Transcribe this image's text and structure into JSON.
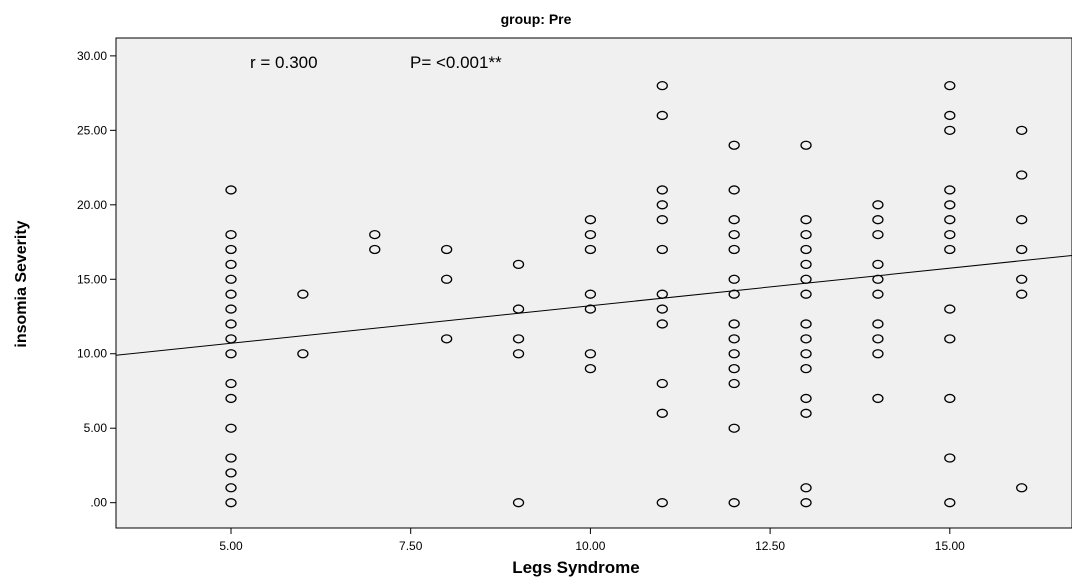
{
  "chart_data": {
    "type": "scatter",
    "title": "group: Pre",
    "xlabel": "Legs Syndrome",
    "ylabel": "insomia Severity",
    "xlim": [
      3.4,
      16.7
    ],
    "ylim": [
      -1.7,
      31.2
    ],
    "x_ticks": [
      "5.00",
      "7.50",
      "10.00",
      "12.50",
      "15.00"
    ],
    "y_ticks": [
      ".00",
      "5.00",
      "10.00",
      "15.00",
      "20.00",
      "25.00",
      "30.00"
    ],
    "annotations": {
      "r_text": "r = 0.300",
      "p_text": "P= <0.001**"
    },
    "fit_line": {
      "x": [
        3.4,
        16.7
      ],
      "y": [
        9.9,
        16.6
      ]
    },
    "grid": false,
    "background": "#f0f0f0",
    "marker_color": "#000000",
    "points": [
      {
        "x": 5,
        "y": 21
      },
      {
        "x": 5,
        "y": 18
      },
      {
        "x": 5,
        "y": 17
      },
      {
        "x": 5,
        "y": 16
      },
      {
        "x": 5,
        "y": 15
      },
      {
        "x": 5,
        "y": 14
      },
      {
        "x": 5,
        "y": 13
      },
      {
        "x": 5,
        "y": 12
      },
      {
        "x": 5,
        "y": 11
      },
      {
        "x": 5,
        "y": 10
      },
      {
        "x": 5,
        "y": 8
      },
      {
        "x": 5,
        "y": 7
      },
      {
        "x": 5,
        "y": 5
      },
      {
        "x": 5,
        "y": 3
      },
      {
        "x": 5,
        "y": 2
      },
      {
        "x": 5,
        "y": 1
      },
      {
        "x": 5,
        "y": 0
      },
      {
        "x": 6,
        "y": 14
      },
      {
        "x": 6,
        "y": 10
      },
      {
        "x": 7,
        "y": 18
      },
      {
        "x": 7,
        "y": 17
      },
      {
        "x": 8,
        "y": 17
      },
      {
        "x": 8,
        "y": 15
      },
      {
        "x": 8,
        "y": 11
      },
      {
        "x": 9,
        "y": 16
      },
      {
        "x": 9,
        "y": 13
      },
      {
        "x": 9,
        "y": 11
      },
      {
        "x": 9,
        "y": 10
      },
      {
        "x": 9,
        "y": 0
      },
      {
        "x": 10,
        "y": 19
      },
      {
        "x": 10,
        "y": 18
      },
      {
        "x": 10,
        "y": 17
      },
      {
        "x": 10,
        "y": 14
      },
      {
        "x": 10,
        "y": 13
      },
      {
        "x": 10,
        "y": 10
      },
      {
        "x": 10,
        "y": 9
      },
      {
        "x": 11,
        "y": 28
      },
      {
        "x": 11,
        "y": 26
      },
      {
        "x": 11,
        "y": 21
      },
      {
        "x": 11,
        "y": 20
      },
      {
        "x": 11,
        "y": 19
      },
      {
        "x": 11,
        "y": 17
      },
      {
        "x": 11,
        "y": 14
      },
      {
        "x": 11,
        "y": 13
      },
      {
        "x": 11,
        "y": 12
      },
      {
        "x": 11,
        "y": 8
      },
      {
        "x": 11,
        "y": 6
      },
      {
        "x": 11,
        "y": 0
      },
      {
        "x": 12,
        "y": 24
      },
      {
        "x": 12,
        "y": 21
      },
      {
        "x": 12,
        "y": 19
      },
      {
        "x": 12,
        "y": 18
      },
      {
        "x": 12,
        "y": 17
      },
      {
        "x": 12,
        "y": 15
      },
      {
        "x": 12,
        "y": 14
      },
      {
        "x": 12,
        "y": 12
      },
      {
        "x": 12,
        "y": 11
      },
      {
        "x": 12,
        "y": 10
      },
      {
        "x": 12,
        "y": 9
      },
      {
        "x": 12,
        "y": 8
      },
      {
        "x": 12,
        "y": 5
      },
      {
        "x": 12,
        "y": 0
      },
      {
        "x": 13,
        "y": 24
      },
      {
        "x": 13,
        "y": 19
      },
      {
        "x": 13,
        "y": 18
      },
      {
        "x": 13,
        "y": 17
      },
      {
        "x": 13,
        "y": 16
      },
      {
        "x": 13,
        "y": 15
      },
      {
        "x": 13,
        "y": 14
      },
      {
        "x": 13,
        "y": 12
      },
      {
        "x": 13,
        "y": 11
      },
      {
        "x": 13,
        "y": 10
      },
      {
        "x": 13,
        "y": 9
      },
      {
        "x": 13,
        "y": 7
      },
      {
        "x": 13,
        "y": 6
      },
      {
        "x": 13,
        "y": 1
      },
      {
        "x": 13,
        "y": 0
      },
      {
        "x": 14,
        "y": 20
      },
      {
        "x": 14,
        "y": 19
      },
      {
        "x": 14,
        "y": 18
      },
      {
        "x": 14,
        "y": 16
      },
      {
        "x": 14,
        "y": 15
      },
      {
        "x": 14,
        "y": 14
      },
      {
        "x": 14,
        "y": 12
      },
      {
        "x": 14,
        "y": 11
      },
      {
        "x": 14,
        "y": 10
      },
      {
        "x": 14,
        "y": 7
      },
      {
        "x": 15,
        "y": 28
      },
      {
        "x": 15,
        "y": 26
      },
      {
        "x": 15,
        "y": 25
      },
      {
        "x": 15,
        "y": 21
      },
      {
        "x": 15,
        "y": 20
      },
      {
        "x": 15,
        "y": 19
      },
      {
        "x": 15,
        "y": 18
      },
      {
        "x": 15,
        "y": 17
      },
      {
        "x": 15,
        "y": 13
      },
      {
        "x": 15,
        "y": 11
      },
      {
        "x": 15,
        "y": 7
      },
      {
        "x": 15,
        "y": 3
      },
      {
        "x": 15,
        "y": 0
      },
      {
        "x": 16,
        "y": 25
      },
      {
        "x": 16,
        "y": 22
      },
      {
        "x": 16,
        "y": 19
      },
      {
        "x": 16,
        "y": 17
      },
      {
        "x": 16,
        "y": 15
      },
      {
        "x": 16,
        "y": 14
      },
      {
        "x": 16,
        "y": 1
      }
    ]
  }
}
